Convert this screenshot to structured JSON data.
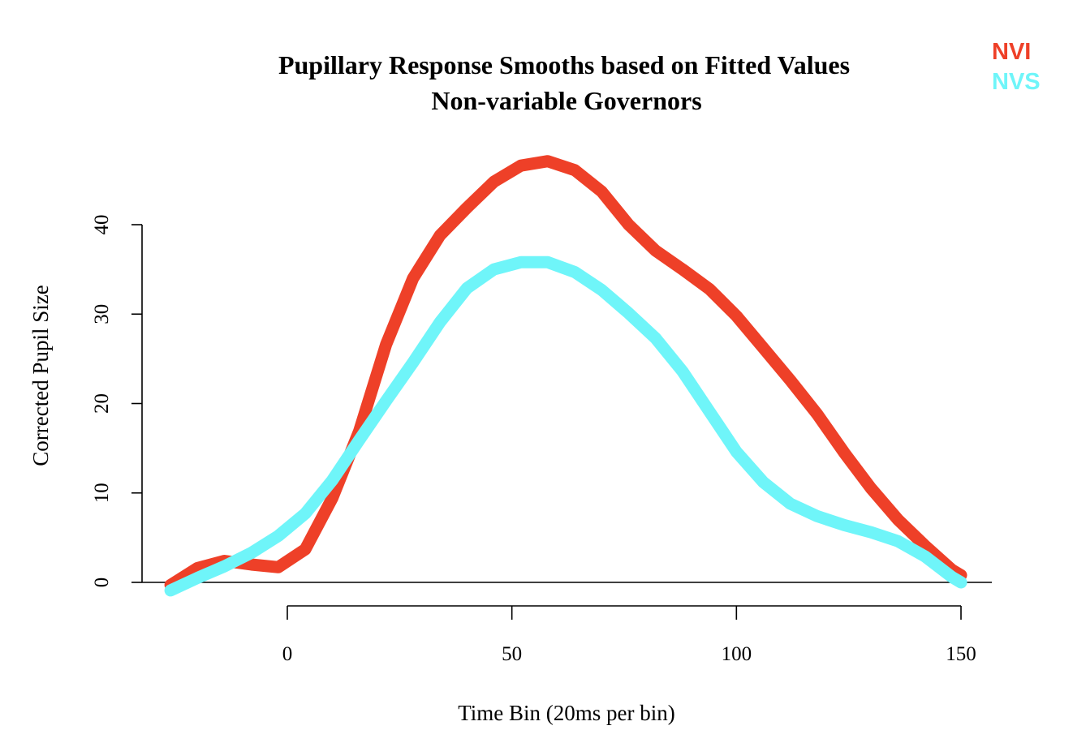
{
  "chart_data": {
    "type": "line",
    "title": "Pupillary Response Smooths based on Fitted Values",
    "subtitle": "Non-variable Governors",
    "xlabel": "Time Bin (20ms per bin)",
    "ylabel": "Corrected Pupil Size",
    "xlim": [
      -26,
      153
    ],
    "ylim": [
      -1,
      48
    ],
    "xticks": [
      0,
      50,
      100,
      150
    ],
    "yticks": [
      0,
      10,
      20,
      30,
      40
    ],
    "grid": false,
    "legend_position": "top-right",
    "series": [
      {
        "name": "NVI",
        "color": "#ee4028",
        "x": [
          -26,
          -20,
          -14,
          -8,
          -2,
          4,
          10,
          16,
          22,
          28,
          34,
          40,
          46,
          52,
          58,
          64,
          70,
          76,
          82,
          88,
          94,
          100,
          106,
          112,
          118,
          124,
          130,
          136,
          142,
          148,
          150
        ],
        "y": [
          -0.3,
          1.6,
          2.4,
          2.0,
          1.7,
          3.7,
          9.4,
          16.9,
          26.6,
          34.0,
          38.8,
          41.9,
          44.8,
          46.6,
          47.1,
          46.1,
          43.7,
          40.0,
          37.1,
          35.0,
          32.8,
          29.8,
          26.2,
          22.6,
          18.8,
          14.5,
          10.5,
          7.0,
          4.1,
          1.4,
          0.8
        ]
      },
      {
        "name": "NVS",
        "color": "#6ff5f9",
        "x": [
          -26,
          -20,
          -14,
          -8,
          -2,
          4,
          10,
          16,
          22,
          28,
          34,
          40,
          46,
          52,
          58,
          64,
          70,
          76,
          82,
          88,
          94,
          100,
          106,
          112,
          118,
          124,
          130,
          136,
          142,
          148,
          150
        ],
        "y": [
          -0.9,
          0.5,
          1.8,
          3.3,
          5.2,
          7.7,
          11.4,
          15.9,
          20.3,
          24.6,
          29.1,
          32.9,
          35.0,
          35.8,
          35.8,
          34.7,
          32.7,
          30.1,
          27.3,
          23.6,
          19.1,
          14.6,
          11.2,
          8.8,
          7.4,
          6.4,
          5.6,
          4.6,
          2.9,
          0.6,
          0.0
        ]
      }
    ]
  }
}
